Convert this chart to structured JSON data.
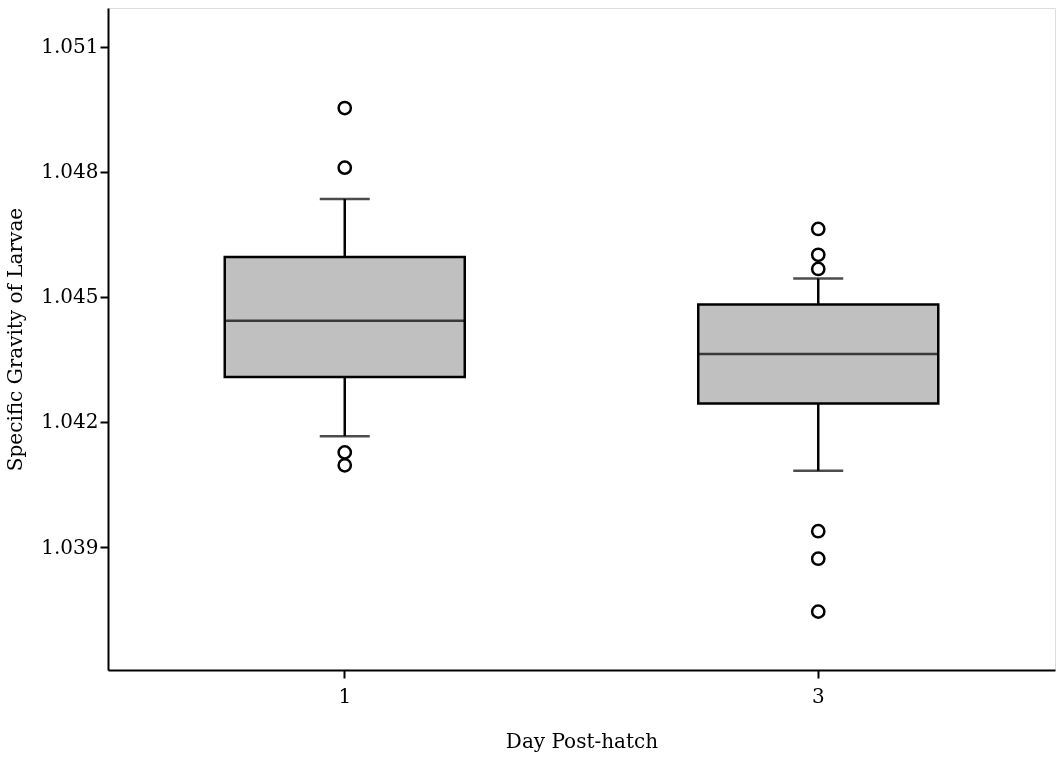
{
  "chart_data": {
    "type": "box",
    "xlabel": "Day Post-hatch",
    "ylabel": "Specific Gravity of Larvae",
    "categories": [
      "1",
      "3"
    ],
    "series": [
      {
        "color": "#c0c0c0",
        "boxes": [
          {
            "low": 1.04166,
            "q1": 1.04308,
            "median": 1.04443,
            "q3": 1.04596,
            "high": 1.04735,
            "outliers": [
              1.04953,
              1.0481,
              1.04127,
              1.04096
            ]
          },
          {
            "low": 1.04083,
            "q1": 1.04244,
            "median": 1.04363,
            "q3": 1.04482,
            "high": 1.04544,
            "outliers": [
              1.04663,
              1.04601,
              1.04567,
              1.03938,
              1.03872,
              1.03745
            ]
          }
        ]
      }
    ],
    "ylim": [
      1.03605,
      1.05193
    ],
    "yticks": [
      1.039,
      1.042,
      1.045,
      1.048,
      1.051
    ],
    "grid": false,
    "marker": "circle"
  }
}
